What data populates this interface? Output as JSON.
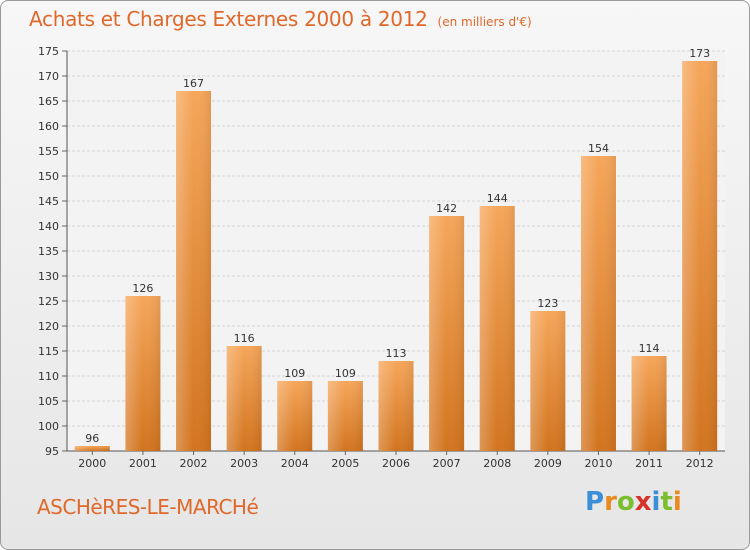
{
  "header": {
    "title": "Achats et Charges Externes 2000 à 2012",
    "unit": "(en milliers d'€)"
  },
  "footer": {
    "town": "ASCHèRES-LE-MARCHé",
    "logo": "Proxiti"
  },
  "colors": {
    "accent": "#e0682a",
    "bar_light": "#f6a65a",
    "bar_dark": "#d2741e"
  },
  "chart_data": {
    "type": "bar",
    "title": "Achats et Charges Externes 2000 à 2012",
    "subtitle": "(en milliers d'€)",
    "xlabel": "",
    "ylabel": "",
    "categories": [
      "2000",
      "2001",
      "2002",
      "2003",
      "2004",
      "2005",
      "2006",
      "2007",
      "2008",
      "2009",
      "2010",
      "2011",
      "2012"
    ],
    "values": [
      96,
      126,
      167,
      116,
      109,
      109,
      113,
      142,
      144,
      123,
      154,
      114,
      173
    ],
    "ylim": [
      95,
      175
    ],
    "yticks": [
      95,
      100,
      105,
      110,
      115,
      120,
      125,
      130,
      135,
      140,
      145,
      150,
      155,
      160,
      165,
      170,
      175
    ],
    "grid": true,
    "legend": "none"
  }
}
